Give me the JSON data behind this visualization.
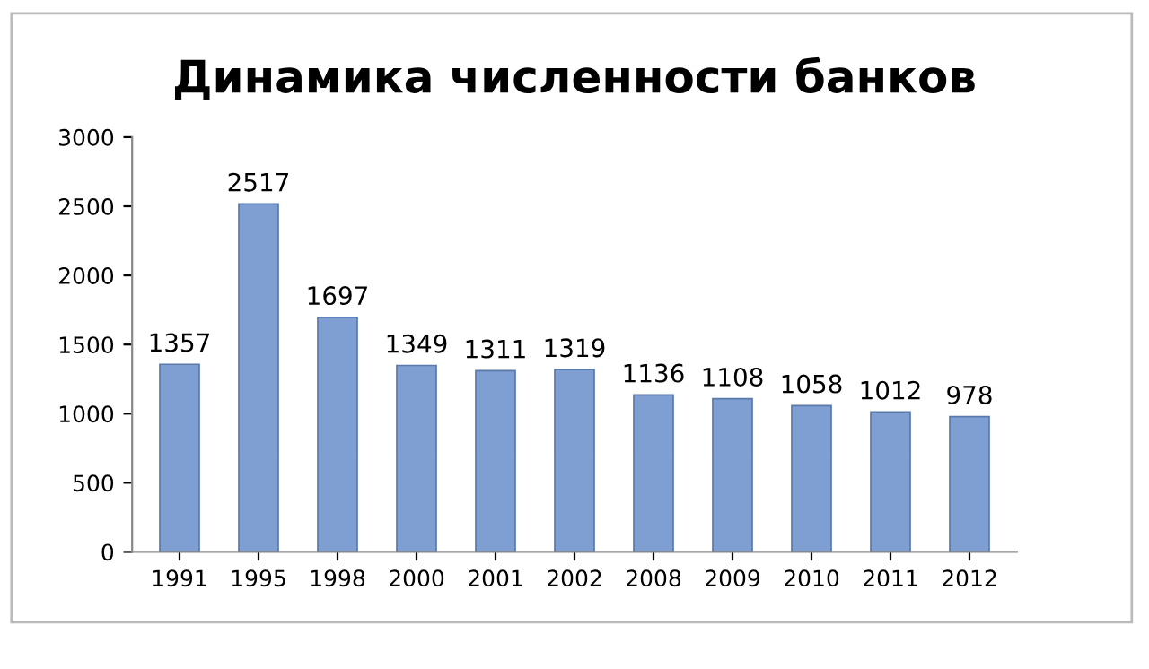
{
  "chart_data": {
    "type": "bar",
    "title": "Динамика численности банков",
    "categories": [
      "1991",
      "1995",
      "1998",
      "2000",
      "2001",
      "2002",
      "2008",
      "2009",
      "2010",
      "2011",
      "2012"
    ],
    "values": [
      1357,
      2517,
      1697,
      1349,
      1311,
      1319,
      1136,
      1108,
      1058,
      1012,
      978
    ],
    "color": "#7f9fd3",
    "ylim": [
      0,
      3000
    ],
    "yticks": [
      0,
      500,
      1000,
      1500,
      2000,
      2500,
      3000
    ],
    "grid": false,
    "data_labels": true,
    "legend": false
  }
}
